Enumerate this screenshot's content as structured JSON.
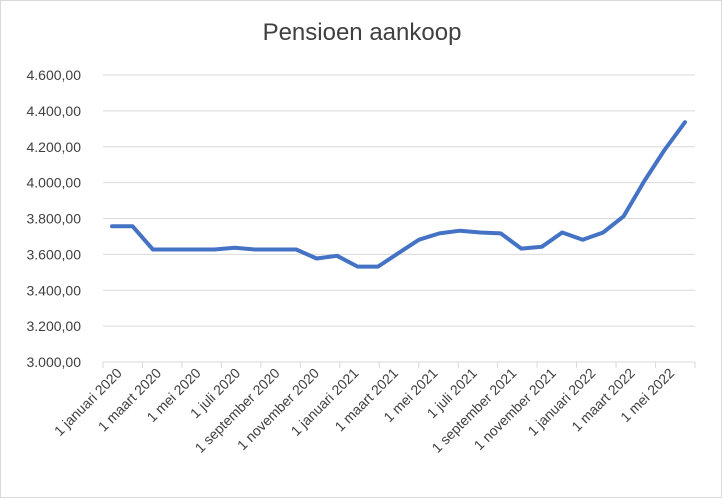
{
  "chart_data": {
    "type": "line",
    "title": "Pensioen aankoop",
    "xlabel": "",
    "ylabel": "",
    "ylim": [
      3000,
      4600
    ],
    "y_tick_labels": [
      "3.000,00",
      "3.200,00",
      "3.400,00",
      "3.600,00",
      "3.800,00",
      "4.000,00",
      "4.200,00",
      "4.400,00",
      "4.600,00"
    ],
    "x_tick_labels": [
      "1 januari 2020",
      "1 maart 2020",
      "1 mei 2020",
      "1 juli 2020",
      "1 september 2020",
      "1 november 2020",
      "1 januari 2021",
      "1 maart 2021",
      "1 mei 2021",
      "1 juli 2021",
      "1 september 2021",
      "1 november 2021",
      "1 januari 2022",
      "1 maart 2022",
      "1 mei 2022"
    ],
    "grid": true,
    "legend": "none",
    "line_color": "#4472C4",
    "series": [
      {
        "values": [
          3757,
          3757,
          3627,
          3627,
          3627,
          3627,
          3637,
          3627,
          3627,
          3627,
          3577,
          3592,
          3532,
          3532,
          3607,
          3682,
          3717,
          3732,
          3722,
          3717,
          3632,
          3642,
          3722,
          3682,
          3722,
          3812,
          4007,
          4182,
          4337
        ]
      }
    ]
  }
}
